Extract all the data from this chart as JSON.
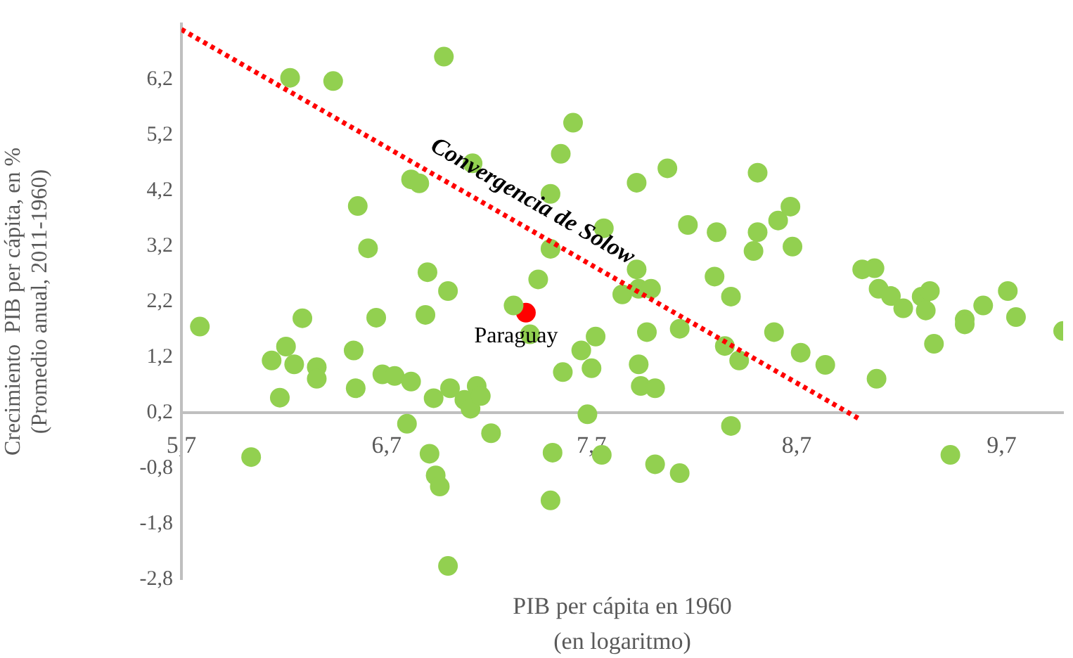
{
  "chart_data": {
    "type": "scatter",
    "xlabel": "PIB per cápita en 1960\n(en logaritmo)",
    "ylabel": "Crecimiento  PIB per cápita, en %\n(Promedio anual, 2011-1960)",
    "xlim": [
      5.7,
      10.0
    ],
    "ylim": [
      -2.8,
      7.2
    ],
    "xticks": [
      {
        "value": 5.7,
        "label": "5,7"
      },
      {
        "value": 6.7,
        "label": "6,7"
      },
      {
        "value": 7.7,
        "label": "7,7"
      },
      {
        "value": 8.7,
        "label": "8,7"
      },
      {
        "value": 9.7,
        "label": "9,7"
      }
    ],
    "yticks": [
      {
        "value": -2.8,
        "label": "-2,8"
      },
      {
        "value": -1.8,
        "label": "-1,8"
      },
      {
        "value": -0.8,
        "label": "-0,8"
      },
      {
        "value": 0.2,
        "label": "0,2"
      },
      {
        "value": 1.2,
        "label": "1,2"
      },
      {
        "value": 2.2,
        "label": "2,2"
      },
      {
        "value": 3.2,
        "label": "3,2"
      },
      {
        "value": 4.2,
        "label": "4,2"
      },
      {
        "value": 5.2,
        "label": "5,2"
      },
      {
        "value": 6.2,
        "label": "6,2"
      }
    ],
    "grid": false,
    "legend": false,
    "marker": "circle",
    "annotations": [
      "Convergencia de Solow"
    ],
    "series": [
      {
        "color": "#92d050",
        "x": [
          6.23,
          6.44,
          6.98,
          7.61,
          7.55,
          7.12,
          6.82,
          6.86,
          7.5,
          6.56,
          7.76,
          6.61,
          7.5,
          6.9,
          7.44,
          7.0,
          7.32,
          8.07,
          7.92,
          8.51,
          8.17,
          8.31,
          8.51,
          8.61,
          8.67,
          8.49,
          8.68,
          7.92,
          8.3,
          8.38,
          7.85,
          7.93,
          7.99,
          9.02,
          9.08,
          9.1,
          9.16,
          9.22,
          9.31,
          9.35,
          9.33,
          9.52,
          9.52,
          9.61,
          9.73,
          9.77,
          10.0,
          9.37,
          9.09,
          8.84,
          8.72,
          8.59,
          8.42,
          8.35,
          8.13,
          7.97,
          7.93,
          7.94,
          8.01,
          7.72,
          7.65,
          7.7,
          7.56,
          7.68,
          8.38,
          7.75,
          8.01,
          8.13,
          9.45,
          7.5,
          5.79,
          6.04,
          6.18,
          6.14,
          6.21,
          6.25,
          6.29,
          6.36,
          6.36,
          6.54,
          6.55,
          6.65,
          6.68,
          6.74,
          6.82,
          6.8,
          6.89,
          6.93,
          7.01,
          7.08,
          7.11,
          7.14,
          7.16,
          7.21,
          6.91,
          6.94,
          6.96,
          7.0,
          7.4,
          7.51
        ],
        "values": [
          6.23,
          6.17,
          6.61,
          5.42,
          4.86,
          4.69,
          4.4,
          4.33,
          4.14,
          3.92,
          3.52,
          3.16,
          3.15,
          2.73,
          2.6,
          2.39,
          2.13,
          4.6,
          4.34,
          4.52,
          3.58,
          3.45,
          3.45,
          3.66,
          3.91,
          3.11,
          3.19,
          2.78,
          2.65,
          2.29,
          2.33,
          2.43,
          2.43,
          2.78,
          2.8,
          2.43,
          2.3,
          2.08,
          2.29,
          2.39,
          2.04,
          1.88,
          1.79,
          2.13,
          2.39,
          1.92,
          1.67,
          1.44,
          0.81,
          1.06,
          1.28,
          1.65,
          1.14,
          1.4,
          1.71,
          1.65,
          1.07,
          0.68,
          0.64,
          1.57,
          1.32,
          1.0,
          0.93,
          0.17,
          -0.04,
          -0.56,
          -0.73,
          -0.89,
          -0.56,
          -1.38,
          1.75,
          -0.6,
          0.47,
          1.14,
          1.39,
          1.07,
          1.9,
          1.02,
          0.81,
          1.32,
          0.64,
          1.91,
          0.89,
          0.86,
          0.76,
          0.0,
          1.96,
          0.46,
          0.64,
          0.43,
          0.27,
          0.68,
          0.5,
          -0.17,
          -0.54,
          -0.93,
          -1.13,
          -2.56,
          1.61,
          -0.52
        ]
      },
      {
        "name": "Paraguay",
        "color": "#ff0000",
        "x": [
          7.38
        ],
        "values": [
          2.0
        ]
      },
      {
        "type": "line",
        "color": "#ff0000",
        "line_style": "dotted",
        "marker": "none",
        "x": [
          5.7,
          9.0
        ],
        "values": [
          7.1,
          0.1
        ]
      }
    ]
  }
}
